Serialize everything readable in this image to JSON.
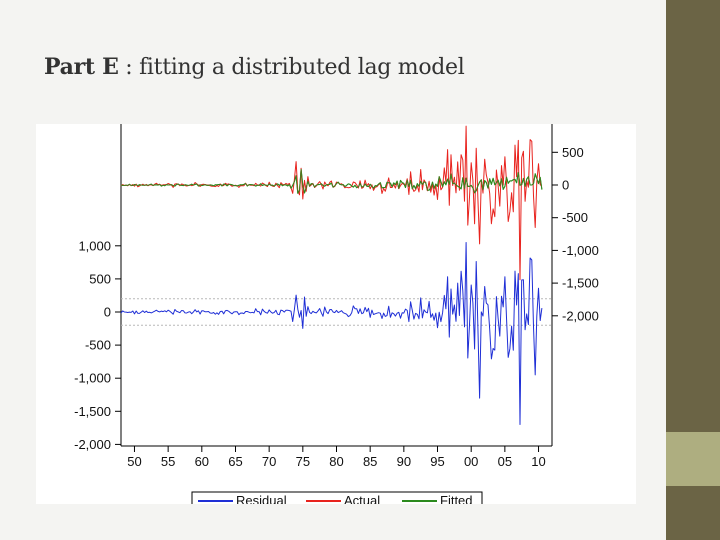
{
  "slide": {
    "title_bold": "Part E",
    "title_rest": " : fitting a distributed lag model"
  },
  "colors": {
    "residual": "#1f2fd6",
    "actual": "#e8231e",
    "fitted": "#2b8a1e",
    "sidebar": "#6b6445",
    "sidebar_accent": "#aeae80"
  },
  "chart_data": {
    "type": "line",
    "title": "",
    "x_ticks": [
      "50",
      "55",
      "60",
      "65",
      "70",
      "75",
      "80",
      "85",
      "90",
      "95",
      "00",
      "05",
      "10"
    ],
    "x_range": [
      1948,
      2012
    ],
    "left_axis": {
      "ticks": [
        "1,000",
        "500",
        "0",
        "-500",
        "-1,000",
        "-1,500",
        "-2,000"
      ],
      "range": [
        -2000,
        1000
      ]
    },
    "right_axis": {
      "ticks": [
        "500",
        "0",
        "-500",
        "-1,000",
        "-1,500",
        "-2,000"
      ],
      "range": [
        -2000,
        600
      ]
    },
    "residual_band": [
      -200,
      200
    ],
    "legend": {
      "placement": "bottom",
      "entries": [
        "Residual",
        "Actual",
        "Fitted"
      ]
    },
    "volatility_profile": [
      {
        "year": 1948,
        "residual": 15,
        "actual": 20,
        "fitted": 12
      },
      {
        "year": 1973,
        "residual": 25,
        "actual": 30,
        "fitted": 20
      },
      {
        "year": 1974.5,
        "residual": 170,
        "actual": 210,
        "fitted": 190
      },
      {
        "year": 1976,
        "residual": 40,
        "actual": 45,
        "fitted": 35
      },
      {
        "year": 1985,
        "residual": 50,
        "actual": 55,
        "fitted": 40
      },
      {
        "year": 1990,
        "residual": 75,
        "actual": 80,
        "fitted": 55
      },
      {
        "year": 1995,
        "residual": 130,
        "actual": 120,
        "fitted": 70
      },
      {
        "year": 1998,
        "residual": 420,
        "actual": 380,
        "fitted": 120
      },
      {
        "year": 2003,
        "residual": 500,
        "actual": 440,
        "fitted": 110
      },
      {
        "year": 2007,
        "residual": 560,
        "actual": 520,
        "fitted": 110
      },
      {
        "year": 2010,
        "residual": 400,
        "actual": 370,
        "fitted": 140
      }
    ],
    "notable_points": [
      {
        "year": 2007.3,
        "residual": -1700,
        "actual": -1450
      },
      {
        "year": 2009.4,
        "residual": -950,
        "actual": -650
      },
      {
        "year": 2001.3,
        "residual": -1300,
        "actual": -900
      },
      {
        "year": 1999.2,
        "residual": 1050,
        "actual": 900
      }
    ]
  }
}
